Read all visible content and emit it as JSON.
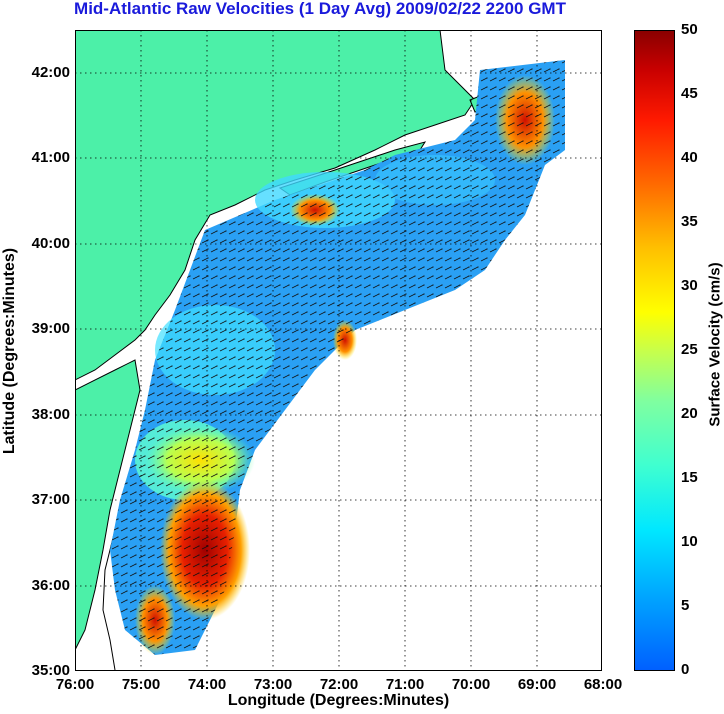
{
  "title": "Mid-Atlantic Raw Velocities (1 Day Avg) 2009/02/22 2200 GMT",
  "map": {
    "xlabel": "Longitude (Degrees:Minutes)",
    "ylabel": "Latitude (Degrees:Minutes)",
    "x_ticks": [
      "76:00",
      "75:00",
      "74:00",
      "73:00",
      "72:00",
      "71:00",
      "70:00",
      "69:00",
      "68:00"
    ],
    "y_ticks": [
      "42:00",
      "41:00",
      "40:00",
      "39:00",
      "38:00",
      "37:00",
      "36:00",
      "35:00"
    ],
    "lon_range": [
      -76,
      -68
    ],
    "lat_range": [
      35,
      42.5
    ],
    "grid": "dotted",
    "land_color": "#4cf0a8",
    "coast_color": "#000000"
  },
  "colorbar": {
    "label": "Surface Velocity (cm/s)",
    "ticks": [
      "50",
      "45",
      "40",
      "35",
      "30",
      "25",
      "20",
      "15",
      "10",
      "5",
      "0"
    ],
    "range": [
      0,
      50
    ]
  }
}
